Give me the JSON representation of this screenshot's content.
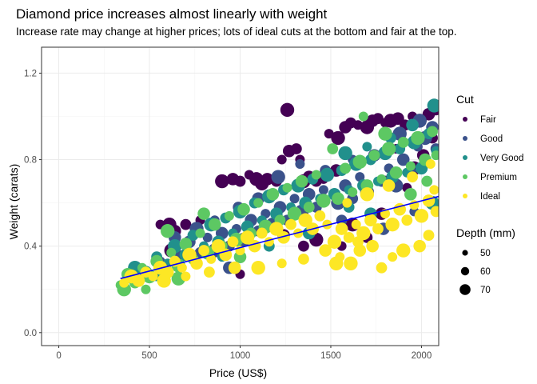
{
  "chart_data": {
    "type": "scatter",
    "title": "Diamond price increases almost linearly with weight",
    "subtitle": "Increase rate may change at higher prices; lots of ideal cuts at the bottom and fair at the top.",
    "xlabel": "Price (US$)",
    "ylabel": "Weight (carats)",
    "xlim": [
      -95,
      2095
    ],
    "ylim": [
      -0.06,
      1.32
    ],
    "x_ticks": [
      0,
      500,
      1000,
      1500,
      2000
    ],
    "y_ticks": [
      0.0,
      0.4,
      0.8,
      1.2
    ],
    "x_tick_labels": [
      "0",
      "500",
      "1000",
      "1500",
      "2000"
    ],
    "y_tick_labels": [
      "0.0",
      "0.4",
      "0.8",
      "1.2"
    ],
    "grid": true,
    "legend_position": "right",
    "color_legend": {
      "title": "Cut",
      "categories": [
        "Fair",
        "Good",
        "Very Good",
        "Premium",
        "Ideal"
      ],
      "colors": [
        "#440154",
        "#3b528b",
        "#21908c",
        "#5dc863",
        "#fde725"
      ]
    },
    "size_legend": {
      "title": "Depth (mm)",
      "values": [
        50,
        60,
        70
      ],
      "labels": [
        "50",
        "60",
        "70"
      ]
    },
    "trend_line": {
      "x": [
        340,
        2095
      ],
      "y": [
        0.25,
        0.63
      ],
      "color": "#0000ff"
    },
    "series": [
      {
        "name": "Fair",
        "color": "#440154",
        "points": [
          [
            560,
            0.5
          ],
          [
            610,
            0.5
          ],
          [
            640,
            0.47
          ],
          [
            700,
            0.5
          ],
          [
            780,
            0.52
          ],
          [
            900,
            0.7
          ],
          [
            960,
            0.71
          ],
          [
            1000,
            0.7
          ],
          [
            1050,
            0.73
          ],
          [
            1090,
            0.71
          ],
          [
            1150,
            0.71
          ],
          [
            1200,
            0.7
          ],
          [
            1230,
            0.8
          ],
          [
            1260,
            1.03
          ],
          [
            1270,
            0.84
          ],
          [
            1310,
            0.85
          ],
          [
            1330,
            0.8
          ],
          [
            1350,
            0.7
          ],
          [
            1380,
            0.72
          ],
          [
            1420,
            0.7
          ],
          [
            1460,
            0.71
          ],
          [
            1540,
            0.9
          ],
          [
            1580,
            0.95
          ],
          [
            1610,
            0.97
          ],
          [
            1650,
            0.96
          ],
          [
            1700,
            0.95
          ],
          [
            1730,
            0.98
          ],
          [
            1760,
            0.99
          ],
          [
            1800,
            0.97
          ],
          [
            1830,
            0.98
          ],
          [
            1870,
            0.99
          ],
          [
            1910,
            0.96
          ],
          [
            1950,
            1.0
          ],
          [
            1990,
            0.98
          ],
          [
            2040,
            1.01
          ],
          [
            2080,
            1.03
          ],
          [
            1490,
            0.92
          ],
          [
            1120,
            0.69
          ],
          [
            1240,
            0.45
          ],
          [
            1350,
            0.4
          ],
          [
            1560,
            0.4
          ],
          [
            1620,
            0.5
          ],
          [
            1780,
            0.55
          ],
          [
            1800,
            0.7
          ],
          [
            1860,
            0.85
          ],
          [
            1960,
            0.76
          ],
          [
            2010,
            0.82
          ],
          [
            2060,
            0.9
          ],
          [
            1000,
            0.27
          ],
          [
            1420,
            0.43
          ],
          [
            1530,
            0.75
          ],
          [
            1700,
            0.44
          ],
          [
            1920,
            0.67
          ],
          [
            620,
            0.38
          ]
        ]
      },
      {
        "name": "Good",
        "color": "#3b528b",
        "points": [
          [
            560,
            0.33
          ],
          [
            660,
            0.35
          ],
          [
            720,
            0.42
          ],
          [
            780,
            0.37
          ],
          [
            820,
            0.44
          ],
          [
            860,
            0.38
          ],
          [
            900,
            0.46
          ],
          [
            940,
            0.4
          ],
          [
            980,
            0.48
          ],
          [
            1020,
            0.43
          ],
          [
            1060,
            0.52
          ],
          [
            1100,
            0.47
          ],
          [
            1140,
            0.55
          ],
          [
            1180,
            0.5
          ],
          [
            1220,
            0.58
          ],
          [
            1260,
            0.52
          ],
          [
            1300,
            0.62
          ],
          [
            1340,
            0.56
          ],
          [
            1380,
            0.64
          ],
          [
            1420,
            0.58
          ],
          [
            1460,
            0.66
          ],
          [
            1540,
            0.6
          ],
          [
            1580,
            0.68
          ],
          [
            1620,
            0.62
          ],
          [
            1660,
            0.72
          ],
          [
            1700,
            0.65
          ],
          [
            1740,
            0.82
          ],
          [
            1780,
            0.7
          ],
          [
            1820,
            0.76
          ],
          [
            1860,
            0.68
          ],
          [
            1900,
            0.8
          ],
          [
            1940,
            0.74
          ],
          [
            1980,
            0.86
          ],
          [
            2020,
            0.9
          ],
          [
            2060,
            0.95
          ],
          [
            2080,
            0.85
          ],
          [
            1330,
            0.78
          ],
          [
            1210,
            0.72
          ],
          [
            1100,
            0.62
          ],
          [
            990,
            0.58
          ],
          [
            860,
            0.52
          ],
          [
            760,
            0.48
          ],
          [
            640,
            0.44
          ],
          [
            1470,
            0.75
          ],
          [
            1620,
            0.8
          ],
          [
            1880,
            0.92
          ],
          [
            1790,
            0.48
          ],
          [
            1560,
            0.52
          ],
          [
            1960,
            0.56
          ],
          [
            1990,
            0.98
          ],
          [
            940,
            0.3
          ]
        ]
      },
      {
        "name": "Very Good",
        "color": "#21908c",
        "points": [
          [
            380,
            0.25
          ],
          [
            420,
            0.3
          ],
          [
            480,
            0.28
          ],
          [
            540,
            0.35
          ],
          [
            600,
            0.32
          ],
          [
            640,
            0.4
          ],
          [
            700,
            0.36
          ],
          [
            740,
            0.45
          ],
          [
            800,
            0.4
          ],
          [
            840,
            0.5
          ],
          [
            880,
            0.42
          ],
          [
            920,
            0.53
          ],
          [
            960,
            0.46
          ],
          [
            1000,
            0.56
          ],
          [
            1040,
            0.49
          ],
          [
            1080,
            0.6
          ],
          [
            1120,
            0.52
          ],
          [
            1160,
            0.63
          ],
          [
            1200,
            0.55
          ],
          [
            1240,
            0.66
          ],
          [
            1280,
            0.58
          ],
          [
            1320,
            0.68
          ],
          [
            1360,
            0.6
          ],
          [
            1400,
            0.71
          ],
          [
            1440,
            0.62
          ],
          [
            1480,
            0.73
          ],
          [
            1520,
            0.64
          ],
          [
            1560,
            0.75
          ],
          [
            1600,
            0.66
          ],
          [
            1640,
            0.78
          ],
          [
            1680,
            0.68
          ],
          [
            1720,
            0.8
          ],
          [
            1760,
            0.7
          ],
          [
            1800,
            0.83
          ],
          [
            1840,
            0.72
          ],
          [
            1880,
            0.85
          ],
          [
            1920,
            0.74
          ],
          [
            1960,
            0.88
          ],
          [
            2000,
            0.76
          ],
          [
            2040,
            0.92
          ],
          [
            2080,
            0.84
          ],
          [
            2070,
            1.05
          ],
          [
            1950,
            0.96
          ],
          [
            1830,
            0.9
          ],
          [
            1700,
            0.86
          ],
          [
            1580,
            0.83
          ],
          [
            1380,
            0.46
          ],
          [
            1160,
            0.4
          ],
          [
            900,
            0.35
          ],
          [
            2060,
            0.6
          ],
          [
            1720,
            0.55
          ],
          [
            1600,
            0.58
          ],
          [
            540,
            0.26
          ]
        ]
      },
      {
        "name": "Premium",
        "color": "#5dc863",
        "points": [
          [
            340,
            0.22
          ],
          [
            360,
            0.2
          ],
          [
            380,
            0.27
          ],
          [
            420,
            0.23
          ],
          [
            460,
            0.3
          ],
          [
            500,
            0.26
          ],
          [
            540,
            0.33
          ],
          [
            580,
            0.28
          ],
          [
            620,
            0.37
          ],
          [
            660,
            0.31
          ],
          [
            700,
            0.41
          ],
          [
            740,
            0.34
          ],
          [
            780,
            0.46
          ],
          [
            820,
            0.37
          ],
          [
            860,
            0.5
          ],
          [
            900,
            0.4
          ],
          [
            940,
            0.54
          ],
          [
            980,
            0.43
          ],
          [
            1020,
            0.57
          ],
          [
            1060,
            0.46
          ],
          [
            1100,
            0.6
          ],
          [
            1140,
            0.49
          ],
          [
            1180,
            0.64
          ],
          [
            1220,
            0.52
          ],
          [
            1260,
            0.67
          ],
          [
            1300,
            0.55
          ],
          [
            1340,
            0.7
          ],
          [
            1380,
            0.58
          ],
          [
            1420,
            0.73
          ],
          [
            1460,
            0.61
          ],
          [
            1540,
            0.62
          ],
          [
            1580,
            0.76
          ],
          [
            1620,
            0.65
          ],
          [
            1660,
            0.79
          ],
          [
            1700,
            0.68
          ],
          [
            1740,
            0.82
          ],
          [
            1780,
            0.71
          ],
          [
            1820,
            0.85
          ],
          [
            1860,
            0.74
          ],
          [
            1900,
            0.88
          ],
          [
            1940,
            0.77
          ],
          [
            1980,
            0.9
          ],
          [
            2020,
            0.8
          ],
          [
            2060,
            0.93
          ],
          [
            2080,
            0.82
          ],
          [
            600,
            0.47
          ],
          [
            800,
            0.55
          ],
          [
            1510,
            0.85
          ],
          [
            1680,
            1.0
          ],
          [
            1800,
            0.92
          ],
          [
            1940,
            0.64
          ],
          [
            2030,
            0.7
          ],
          [
            480,
            0.2
          ],
          [
            660,
            0.25
          ],
          [
            1000,
            0.35
          ]
        ]
      },
      {
        "name": "Ideal",
        "color": "#fde725",
        "points": [
          [
            360,
            0.23
          ],
          [
            400,
            0.26
          ],
          [
            440,
            0.24
          ],
          [
            480,
            0.28
          ],
          [
            520,
            0.26
          ],
          [
            560,
            0.3
          ],
          [
            600,
            0.28
          ],
          [
            640,
            0.33
          ],
          [
            680,
            0.3
          ],
          [
            720,
            0.36
          ],
          [
            760,
            0.32
          ],
          [
            800,
            0.38
          ],
          [
            840,
            0.34
          ],
          [
            880,
            0.4
          ],
          [
            920,
            0.36
          ],
          [
            960,
            0.42
          ],
          [
            1000,
            0.38
          ],
          [
            1040,
            0.44
          ],
          [
            1080,
            0.4
          ],
          [
            1120,
            0.46
          ],
          [
            1160,
            0.42
          ],
          [
            1200,
            0.48
          ],
          [
            1240,
            0.44
          ],
          [
            1280,
            0.5
          ],
          [
            1320,
            0.46
          ],
          [
            1360,
            0.52
          ],
          [
            1400,
            0.48
          ],
          [
            1440,
            0.54
          ],
          [
            1480,
            0.5
          ],
          [
            1520,
            0.42
          ],
          [
            1560,
            0.48
          ],
          [
            1600,
            0.44
          ],
          [
            1640,
            0.5
          ],
          [
            1680,
            0.46
          ],
          [
            1720,
            0.52
          ],
          [
            1760,
            0.48
          ],
          [
            1800,
            0.55
          ],
          [
            1840,
            0.5
          ],
          [
            1880,
            0.57
          ],
          [
            1920,
            0.52
          ],
          [
            1960,
            0.59
          ],
          [
            2000,
            0.54
          ],
          [
            2040,
            0.61
          ],
          [
            2080,
            0.56
          ],
          [
            1550,
            0.35
          ],
          [
            1610,
            0.32
          ],
          [
            1660,
            0.38
          ],
          [
            1780,
            0.3
          ],
          [
            1840,
            0.35
          ],
          [
            1900,
            0.38
          ],
          [
            1990,
            0.4
          ],
          [
            2040,
            0.45
          ],
          [
            1590,
            0.6
          ],
          [
            1700,
            0.64
          ],
          [
            1820,
            0.68
          ],
          [
            1950,
            0.72
          ],
          [
            2050,
            0.78
          ],
          [
            1530,
            0.32
          ],
          [
            1470,
            0.38
          ],
          [
            1350,
            0.34
          ],
          [
            1230,
            0.32
          ],
          [
            1100,
            0.3
          ],
          [
            970,
            0.3
          ],
          [
            830,
            0.28
          ],
          [
            700,
            0.26
          ],
          [
            580,
            0.24
          ],
          [
            1730,
            0.4
          ],
          [
            1650,
            0.42
          ],
          [
            2070,
            0.66
          ]
        ]
      }
    ]
  }
}
